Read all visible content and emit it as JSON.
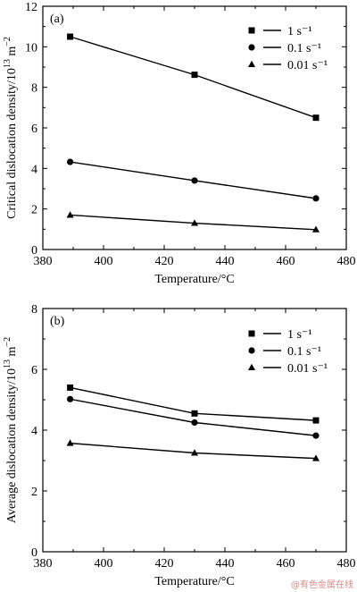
{
  "chart_data": [
    {
      "type": "line",
      "panel_label": "(a)",
      "xlabel": "Temperature/°C",
      "ylabel_main": "Critical dislocation density/10",
      "ylabel_exp": "13",
      "ylabel_unit": " m",
      "ylabel_unit_exp": "−2",
      "xlim": [
        380,
        480
      ],
      "ylim": [
        0,
        12
      ],
      "xticks": [
        380,
        400,
        420,
        440,
        460,
        480
      ],
      "yticks": [
        0,
        2,
        4,
        6,
        8,
        10,
        12
      ],
      "x": [
        389,
        430,
        470
      ],
      "series": [
        {
          "name": "1 s⁻¹",
          "marker": "square",
          "values": [
            10.5,
            8.62,
            6.5
          ]
        },
        {
          "name": "0.1 s⁻¹",
          "marker": "circle",
          "values": [
            4.32,
            3.4,
            2.52
          ]
        },
        {
          "name": "0.01 s⁻¹",
          "marker": "triangle",
          "values": [
            1.7,
            1.3,
            0.98
          ]
        }
      ],
      "legend_position": "top-right",
      "grid": false
    },
    {
      "type": "line",
      "panel_label": "(b)",
      "xlabel": "Temperature/°C",
      "ylabel_main": "Average dislocation density/10",
      "ylabel_exp": "13",
      "ylabel_unit": " m",
      "ylabel_unit_exp": "−2",
      "xlim": [
        380,
        480
      ],
      "ylim": [
        0,
        8
      ],
      "xticks": [
        380,
        400,
        420,
        440,
        460,
        480
      ],
      "yticks": [
        0,
        2,
        4,
        6,
        8
      ],
      "x": [
        389,
        430,
        470
      ],
      "series": [
        {
          "name": "1 s⁻¹",
          "marker": "square",
          "values": [
            5.4,
            4.55,
            4.32
          ]
        },
        {
          "name": "0.1 s⁻¹",
          "marker": "circle",
          "values": [
            5.02,
            4.25,
            3.82
          ]
        },
        {
          "name": "0.01 s⁻¹",
          "marker": "triangle",
          "values": [
            3.57,
            3.25,
            3.07
          ]
        }
      ],
      "legend_position": "top-right",
      "grid": false
    }
  ],
  "watermark": "@有色金属在线"
}
